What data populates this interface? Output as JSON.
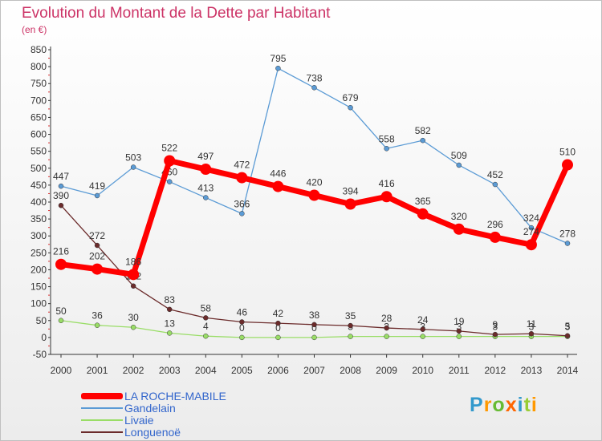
{
  "title": "Evolution du Montant de la Dette par Habitant",
  "unit": "(en €)",
  "logo": "Proxiti",
  "chart_data": {
    "type": "line",
    "categories": [
      "2000",
      "2001",
      "2002",
      "2003",
      "2004",
      "2005",
      "2006",
      "2007",
      "2008",
      "2009",
      "2010",
      "2011",
      "2012",
      "2013",
      "2014"
    ],
    "ylim": [
      -50,
      850
    ],
    "ytick_step": 50,
    "grid": false,
    "legend_placement": "bottom-left",
    "series": [
      {
        "name": "Gandelain",
        "color": "#5b9bd5",
        "values": [
          447,
          419,
          503,
          460,
          413,
          366,
          795,
          738,
          679,
          558,
          582,
          509,
          452,
          324,
          278
        ],
        "labels": [
          "447",
          "419",
          "503",
          "460",
          "413",
          "366",
          "795",
          "738",
          "679",
          "558",
          "582",
          "509",
          "452",
          "324",
          "278"
        ]
      },
      {
        "name": "Livaie",
        "color": "#99dd66",
        "values": [
          50,
          36,
          30,
          13,
          4,
          0,
          0,
          0,
          3,
          3,
          3,
          3,
          3,
          3,
          3
        ],
        "labels": [
          "50",
          "36",
          "30",
          "13",
          "4",
          "0",
          "0",
          "0",
          "3",
          "3",
          "3",
          "3",
          "3",
          "3",
          "3"
        ]
      },
      {
        "name": "Longuenoë",
        "color": "#6b2b2b",
        "values": [
          390,
          272,
          152,
          83,
          58,
          46,
          42,
          38,
          35,
          28,
          24,
          19,
          9,
          11,
          5
        ],
        "labels": [
          "390",
          "272",
          "152",
          "83",
          "58",
          "46",
          "42",
          "38",
          "35",
          "28",
          "24",
          "19",
          "9",
          "11",
          "5"
        ]
      },
      {
        "name": "LA ROCHE-MABILE",
        "color": "#ff0000",
        "values": [
          216,
          202,
          186,
          522,
          497,
          472,
          446,
          420,
          394,
          416,
          365,
          320,
          296,
          274,
          510
        ],
        "labels": [
          "216",
          "202",
          "186",
          "522",
          "497",
          "472",
          "446",
          "420",
          "394",
          "416",
          "365",
          "320",
          "296",
          "274",
          "510"
        ]
      }
    ]
  },
  "legend": [
    {
      "label": "LA ROCHE-MABILE",
      "color": "#ff0000",
      "thick": true
    },
    {
      "label": "Gandelain",
      "color": "#5b9bd5",
      "thick": false
    },
    {
      "label": "Livaie",
      "color": "#99dd66",
      "thick": false
    },
    {
      "label": "Longuenoë",
      "color": "#6b2b2b",
      "thick": false
    }
  ],
  "colors": {
    "title": "#cc3366",
    "axis": "#333333",
    "legend_text": "#3366cc"
  }
}
